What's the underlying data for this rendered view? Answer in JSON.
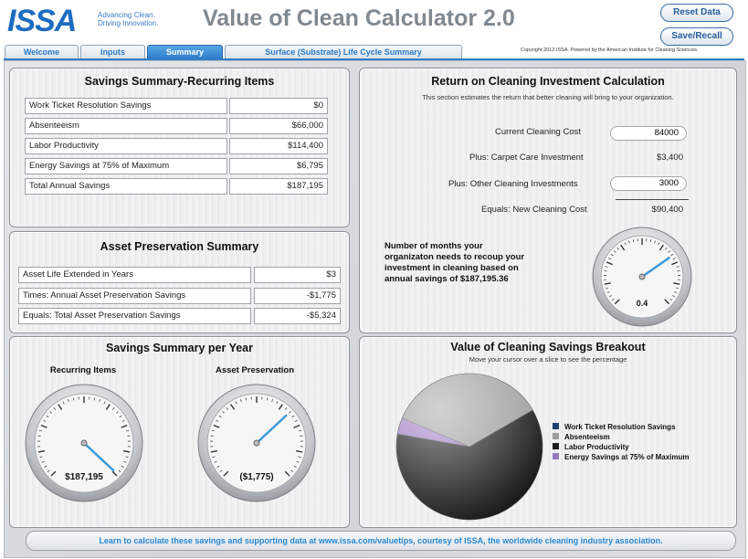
{
  "header": {
    "logo_text": "ISSA",
    "tagline_line1": "Advancing Clean.",
    "tagline_line2": "Driving Innovation.",
    "title": "Value of Clean Calculator 2.0",
    "reset_label": "Reset Data",
    "save_label": "Save/Recall",
    "copyright": "Copyright 2012 ISSA.  Powered by the American Institute for Cleaning Sciences."
  },
  "tabs": [
    {
      "label": "Welcome",
      "active": false
    },
    {
      "label": "Inputs",
      "active": false
    },
    {
      "label": "Summary",
      "active": true
    },
    {
      "label": "Surface (Substrate) Life Cycle Summary",
      "active": false
    }
  ],
  "recurring": {
    "title": "Savings Summary-Recurring Items",
    "rows": [
      {
        "label": "Work Ticket Resolution Savings",
        "value": "$0"
      },
      {
        "label": "Absenteeism",
        "value": "$66,000"
      },
      {
        "label": "Labor Productivity",
        "value": "$114,400"
      },
      {
        "label": "Energy Savings at 75% of Maximum",
        "value": "$6,795"
      },
      {
        "label": "Total Annual Savings",
        "value": "$187,195"
      }
    ]
  },
  "asset": {
    "title": "Asset Preservation Summary",
    "rows": [
      {
        "label": "Asset Life Extended in Years",
        "value": "$3"
      },
      {
        "label": "Times: Annual Asset Preservation Savings",
        "value": "-$1,775"
      },
      {
        "label": "Equals: Total Asset Preservation Savings",
        "value": "-$5,324"
      }
    ]
  },
  "roi": {
    "title": "Return on Cleaning Investment Calculation",
    "subtitle": "This section estimates the return that better cleaning will bring to your organization.",
    "current_label": "Current Cleaning Cost",
    "current_value": "84000",
    "carpet_label": "Plus: Carpet Care Investment",
    "carpet_value": "$3,400",
    "other_label": "Plus: Other Cleaning Investments",
    "other_value": "3000",
    "new_label": "Equals: New Cleaning Cost",
    "new_value": "$90,400",
    "recoup_text": "Number of months your organizaton needs  to recoup your investment in cleaning based on annual savings of $187,195.36",
    "gauge_value": "0.4",
    "gauge_angle": 55
  },
  "per_year": {
    "title": "Savings Summary per Year",
    "recurring_label": "Recurring Items",
    "recurring_value": "$187,195",
    "recurring_angle": 133,
    "asset_label": "Asset Preservation",
    "asset_value": "($1,775)",
    "asset_angle": 47
  },
  "breakout": {
    "title": "Value of Cleaning Savings Breakout",
    "subtitle": "Move your cursor over a slice to see the percentage",
    "legend": [
      {
        "label": "Work Ticket Resolution Savings",
        "color": "#1f3f74"
      },
      {
        "label": "Absenteeism",
        "color": "#9c9c9c"
      },
      {
        "label": "Labor Productivity",
        "color": "#1c1c1c"
      },
      {
        "label": "Energy Savings at 75% of Maximum",
        "color": "#9a78c0"
      }
    ]
  },
  "footer_text": "Learn to calculate these savings and supporting data at www.issa.com/valuetips, courtesy of ISSA, the worldwide cleaning industry association.",
  "chart_data": {
    "type": "pie",
    "categories": [
      "Work Ticket Resolution Savings",
      "Absenteeism",
      "Labor Productivity",
      "Energy Savings at 75% of Maximum"
    ],
    "values": [
      0,
      66000,
      114400,
      6795
    ]
  }
}
